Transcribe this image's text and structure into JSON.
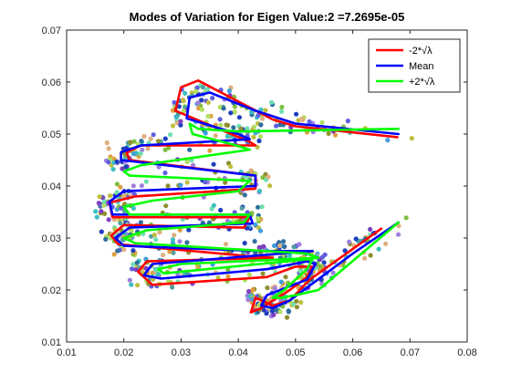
{
  "chart_data": {
    "type": "line",
    "title": "Modes of Variation for Eigen Value:2 =7.2695e-05",
    "xlabel": "",
    "ylabel": "",
    "xlim": [
      0.01,
      0.08
    ],
    "ylim": [
      0.01,
      0.07
    ],
    "x_ticks": [
      0.01,
      0.02,
      0.03,
      0.04,
      0.05,
      0.06,
      0.07,
      0.08
    ],
    "y_ticks": [
      0.01,
      0.02,
      0.03,
      0.04,
      0.05,
      0.06,
      0.07
    ],
    "x_tick_labels": [
      "0.01",
      "0.02",
      "0.03",
      "0.04",
      "0.05",
      "0.06",
      "0.07",
      "0.08"
    ],
    "y_tick_labels": [
      "0.01",
      "0.02",
      "0.03",
      "0.04",
      "0.05",
      "0.06",
      "0.07"
    ],
    "grid": false,
    "legend_position": "top-right",
    "series": [
      {
        "name": "-2*√λ",
        "color": "#ff0000",
        "points": [
          [
            0.0678,
            0.0494
          ],
          [
            0.05,
            0.0515
          ],
          [
            0.046,
            0.0528
          ],
          [
            0.033,
            0.0603
          ],
          [
            0.03,
            0.059
          ],
          [
            0.029,
            0.0545
          ],
          [
            0.042,
            0.0485
          ],
          [
            0.043,
            0.0478
          ],
          [
            0.023,
            0.0478
          ],
          [
            0.0205,
            0.0465
          ],
          [
            0.021,
            0.045
          ],
          [
            0.043,
            0.042
          ],
          [
            0.043,
            0.0395
          ],
          [
            0.022,
            0.038
          ],
          [
            0.0175,
            0.0368
          ],
          [
            0.018,
            0.034
          ],
          [
            0.042,
            0.034
          ],
          [
            0.041,
            0.032
          ],
          [
            0.02,
            0.0325
          ],
          [
            0.0178,
            0.0305
          ],
          [
            0.019,
            0.0288
          ],
          [
            0.042,
            0.0265
          ],
          [
            0.046,
            0.0262
          ],
          [
            0.024,
            0.0255
          ],
          [
            0.0225,
            0.0235
          ],
          [
            0.025,
            0.021
          ],
          [
            0.045,
            0.0225
          ],
          [
            0.05,
            0.0245
          ],
          [
            0.053,
            0.0245
          ],
          [
            0.052,
            0.0225
          ],
          [
            0.049,
            0.02
          ],
          [
            0.044,
            0.0165
          ],
          [
            0.0422,
            0.0157
          ],
          [
            0.043,
            0.0185
          ],
          [
            0.046,
            0.017
          ],
          [
            0.049,
            0.018
          ],
          [
            0.0525,
            0.022
          ],
          [
            0.065,
            0.0318
          ]
        ]
      },
      {
        "name": "Mean",
        "color": "#0000ff",
        "points": [
          [
            0.068,
            0.05
          ],
          [
            0.05,
            0.052
          ],
          [
            0.043,
            0.0545
          ],
          [
            0.035,
            0.058
          ],
          [
            0.0315,
            0.057
          ],
          [
            0.031,
            0.053
          ],
          [
            0.04,
            0.05
          ],
          [
            0.042,
            0.049
          ],
          [
            0.023,
            0.0478
          ],
          [
            0.0195,
            0.0465
          ],
          [
            0.0195,
            0.045
          ],
          [
            0.043,
            0.042
          ],
          [
            0.043,
            0.04
          ],
          [
            0.02,
            0.039
          ],
          [
            0.0175,
            0.037
          ],
          [
            0.018,
            0.0345
          ],
          [
            0.042,
            0.0345
          ],
          [
            0.0425,
            0.0328
          ],
          [
            0.021,
            0.032
          ],
          [
            0.0185,
            0.03
          ],
          [
            0.02,
            0.0285
          ],
          [
            0.044,
            0.0275
          ],
          [
            0.053,
            0.0275
          ],
          [
            0.025,
            0.025
          ],
          [
            0.0235,
            0.0228
          ],
          [
            0.0265,
            0.0222
          ],
          [
            0.045,
            0.024
          ],
          [
            0.052,
            0.0255
          ],
          [
            0.0535,
            0.025
          ],
          [
            0.052,
            0.022
          ],
          [
            0.045,
            0.019
          ],
          [
            0.044,
            0.017
          ],
          [
            0.046,
            0.0165
          ],
          [
            0.049,
            0.018
          ],
          [
            0.06,
            0.027
          ],
          [
            0.068,
            0.033
          ]
        ]
      },
      {
        "name": "+2*√λ",
        "color": "#00ff00",
        "points": [
          [
            0.068,
            0.051
          ],
          [
            0.04,
            0.0505
          ],
          [
            0.033,
            0.051
          ],
          [
            0.0315,
            0.052
          ],
          [
            0.032,
            0.05
          ],
          [
            0.039,
            0.048
          ],
          [
            0.042,
            0.047
          ],
          [
            0.023,
            0.044
          ],
          [
            0.02,
            0.0428
          ],
          [
            0.021,
            0.042
          ],
          [
            0.042,
            0.041
          ],
          [
            0.04,
            0.039
          ],
          [
            0.025,
            0.0372
          ],
          [
            0.02,
            0.036
          ],
          [
            0.021,
            0.0345
          ],
          [
            0.042,
            0.0345
          ],
          [
            0.041,
            0.033
          ],
          [
            0.024,
            0.0315
          ],
          [
            0.02,
            0.03
          ],
          [
            0.022,
            0.029
          ],
          [
            0.052,
            0.027
          ],
          [
            0.054,
            0.0262
          ],
          [
            0.03,
            0.025
          ],
          [
            0.026,
            0.024
          ],
          [
            0.027,
            0.0232
          ],
          [
            0.053,
            0.026
          ],
          [
            0.052,
            0.024
          ],
          [
            0.048,
            0.02
          ],
          [
            0.046,
            0.0185
          ],
          [
            0.0475,
            0.0185
          ],
          [
            0.05,
            0.019
          ],
          [
            0.054,
            0.02
          ],
          [
            0.068,
            0.033
          ]
        ]
      }
    ]
  }
}
